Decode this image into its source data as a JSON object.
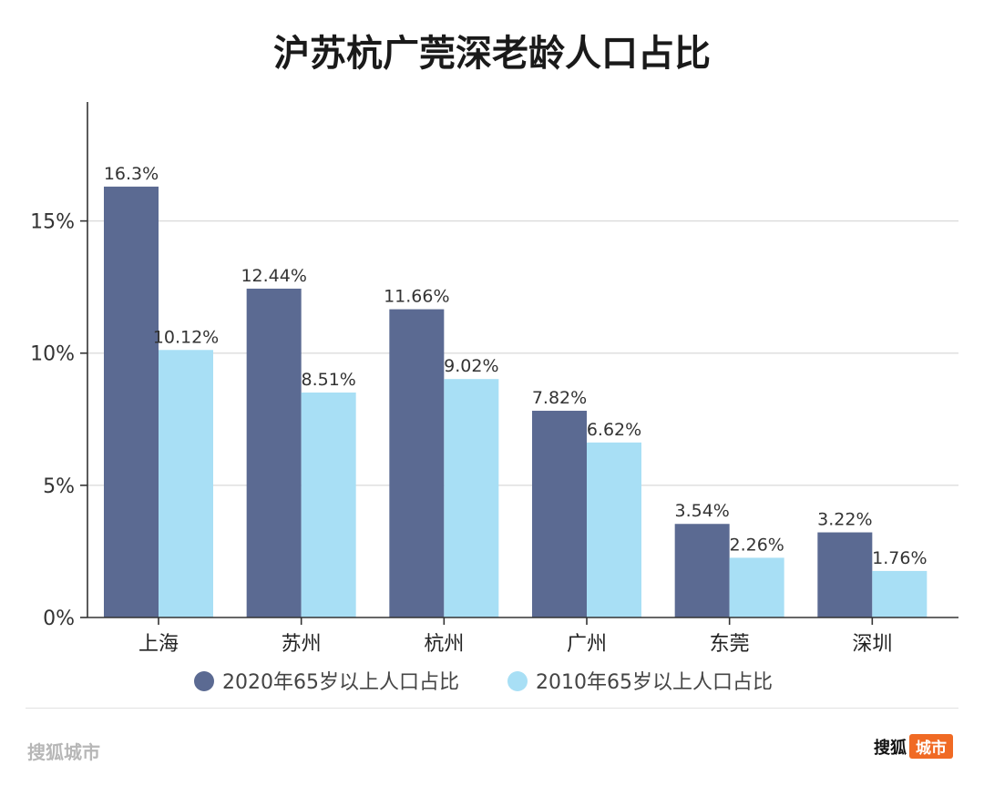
{
  "colors": {
    "series_2020": "#5b6a92",
    "series_2010": "#a8dff5"
  },
  "footer": {
    "left_text": "搜狐城市",
    "brand": "搜狐",
    "tag": "城市"
  },
  "chart_data": {
    "type": "bar",
    "title": "沪苏杭广莞深老龄人口占比",
    "categories": [
      "上海",
      "苏州",
      "杭州",
      "广州",
      "东莞",
      "深圳"
    ],
    "series": [
      {
        "name": "2020年65岁以上人口占比",
        "values": [
          16.3,
          12.44,
          11.66,
          7.82,
          3.54,
          3.22
        ],
        "labels": [
          "16.3%",
          "12.44%",
          "11.66%",
          "7.82%",
          "3.54%",
          "3.22%"
        ]
      },
      {
        "name": "2010年65岁以上人口占比",
        "values": [
          10.12,
          8.51,
          9.02,
          6.62,
          2.26,
          1.76
        ],
        "labels": [
          "10.12%",
          "8.51%",
          "9.02%",
          "6.62%",
          "2.26%",
          "1.76%"
        ]
      }
    ],
    "yticks": [
      "0%",
      "5%",
      "10%",
      "15%"
    ],
    "ytick_values": [
      0,
      5,
      10,
      15
    ],
    "ylim": [
      0,
      19.5
    ],
    "grid": true,
    "legend_position": "bottom"
  }
}
